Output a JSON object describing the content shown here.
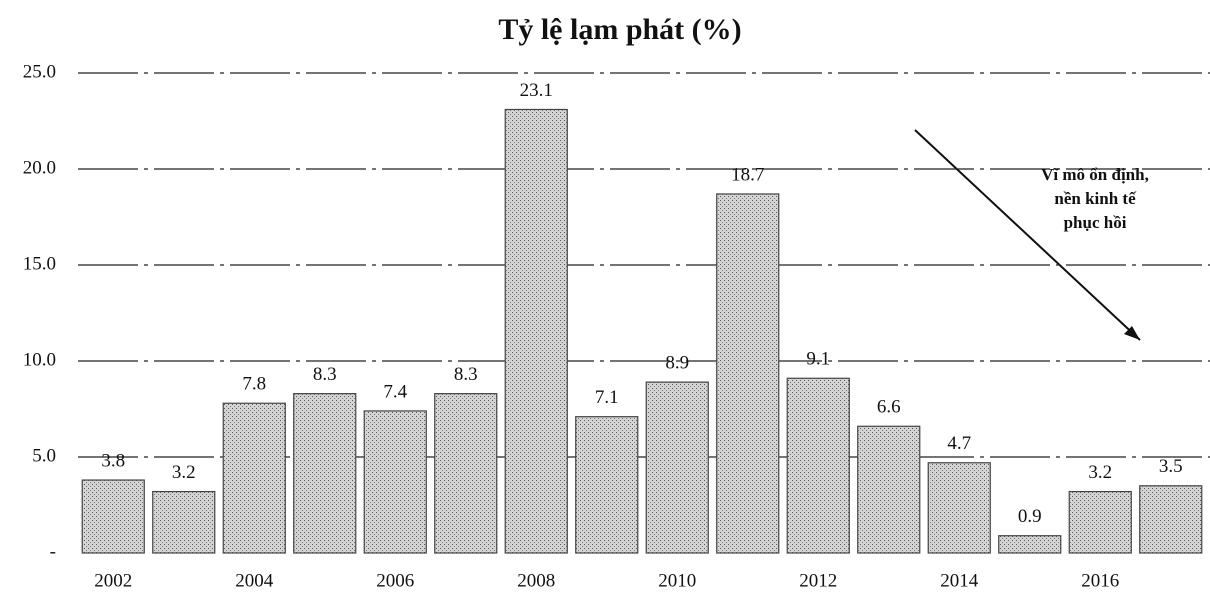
{
  "chart_data": {
    "type": "bar",
    "title": "Tỷ lệ lạm phát (%)",
    "categories": [
      "2002",
      null,
      "2004",
      null,
      "2006",
      null,
      "2008",
      null,
      "2010",
      null,
      "2012",
      null,
      "2014",
      null,
      "2016",
      null
    ],
    "values": [
      3.8,
      3.2,
      7.8,
      8.3,
      7.4,
      8.3,
      23.1,
      7.1,
      8.9,
      18.7,
      9.1,
      6.6,
      4.7,
      0.9,
      3.2,
      3.5
    ],
    "color": "#b8b8b8",
    "ylim": [
      0,
      25
    ],
    "yticks": [
      {
        "value": 0,
        "label": "-"
      },
      {
        "value": 5,
        "label": "5.0"
      },
      {
        "value": 10,
        "label": "10.0"
      },
      {
        "value": 15,
        "label": "15.0"
      },
      {
        "value": 20,
        "label": "20.0"
      },
      {
        "value": 25,
        "label": "25.0"
      }
    ],
    "grid": true,
    "annotation": [
      "Vĩ mô ổn định,",
      "nền kinh tế",
      "phục hồi"
    ]
  }
}
